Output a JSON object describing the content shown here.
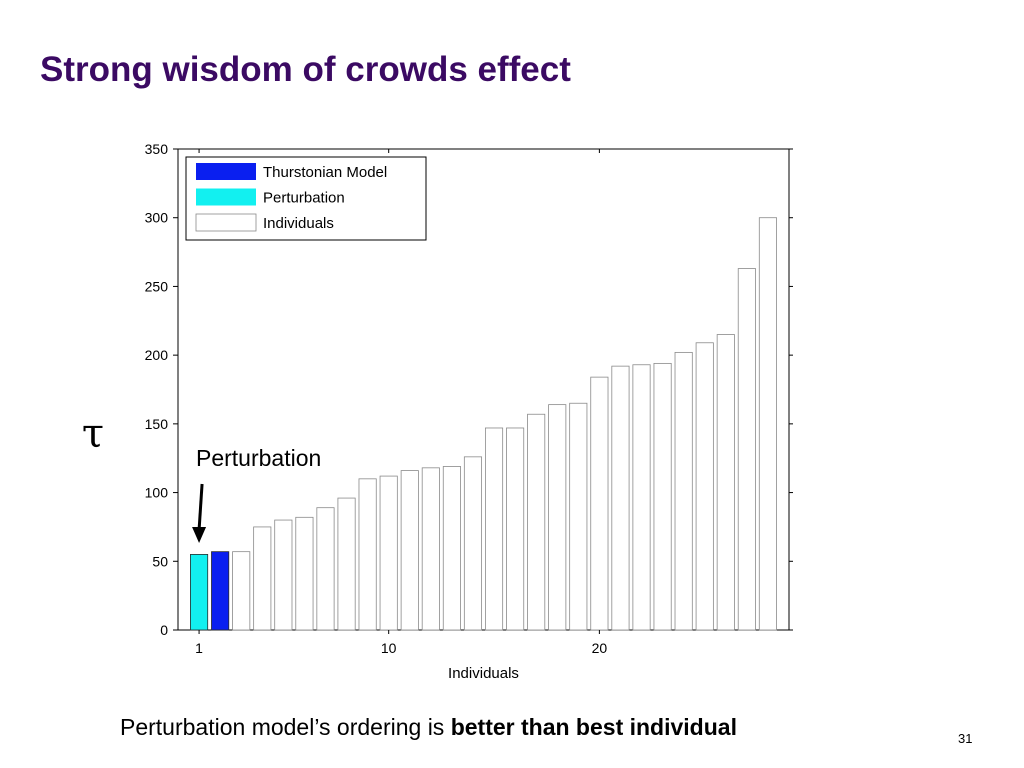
{
  "slide": {
    "title": "Strong wisdom of crowds effect",
    "caption_prefix": "Perturbation model’s ordering is ",
    "caption_bold": "better than best individual",
    "slide_number": "31"
  },
  "colors": {
    "title": "#3b0a63",
    "thurstonian": "#0a1ff0",
    "perturbation": "#12f0f0",
    "individuals": "#ffffff"
  },
  "chart_data": {
    "type": "bar",
    "title": "",
    "xlabel": "Individuals",
    "ylabel": "τ",
    "xlim": [
      0,
      29
    ],
    "ylim": [
      0,
      350
    ],
    "x_ticks": [
      1,
      10,
      20
    ],
    "y_ticks": [
      0,
      50,
      100,
      150,
      200,
      250,
      300,
      350
    ],
    "grid": false,
    "legend_position": "top-left",
    "annotation": {
      "text": "Perturbation",
      "points_to_x": 1
    },
    "series": [
      {
        "name": "Thurstonian Model",
        "color": "#0a1ff0",
        "x": [
          2
        ],
        "values": [
          57
        ]
      },
      {
        "name": "Perturbation",
        "color": "#12f0f0",
        "x": [
          1
        ],
        "values": [
          55
        ]
      },
      {
        "name": "Individuals",
        "color": "#ffffff",
        "x": [
          3,
          4,
          5,
          6,
          7,
          8,
          9,
          10,
          11,
          12,
          13,
          14,
          15,
          16,
          17,
          18,
          19,
          20,
          21,
          22,
          23,
          24,
          25,
          26,
          27,
          28
        ],
        "values": [
          57,
          75,
          80,
          82,
          89,
          96,
          110,
          112,
          116,
          118,
          119,
          126,
          147,
          147,
          157,
          164,
          165,
          184,
          192,
          193,
          194,
          202,
          209,
          215,
          263,
          300
        ]
      }
    ]
  }
}
